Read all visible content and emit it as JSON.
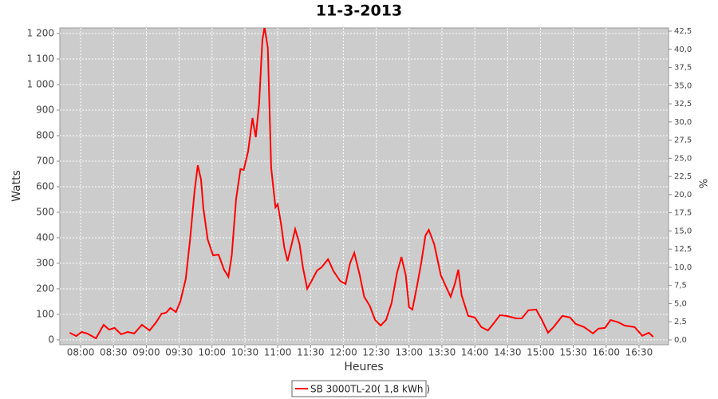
{
  "chart_data": {
    "type": "line",
    "title": "11-3-2013",
    "x_label": "Heures",
    "y_label": "Watts",
    "y2_label": "%",
    "x": [
      "07:50",
      "07:56",
      "08:01",
      "08:06",
      "08:14",
      "08:21",
      "08:26",
      "08:31",
      "08:37",
      "08:43",
      "08:49",
      "08:56",
      "09:03",
      "09:09",
      "09:14",
      "09:18",
      "09:22",
      "09:27",
      "09:31",
      "09:36",
      "09:40",
      "09:44",
      "09:47",
      "09:50",
      "09:52",
      "09:56",
      "10:01",
      "10:06",
      "10:11",
      "10:15",
      "10:18",
      "10:22",
      "10:26",
      "10:29",
      "10:33",
      "10:37",
      "10:40",
      "10:43",
      "10:46",
      "10:48",
      "10:51",
      "10:54",
      "10:58",
      "11:00",
      "11:03",
      "11:06",
      "11:09",
      "11:13",
      "11:16",
      "11:20",
      "11:23",
      "11:27",
      "11:31",
      "11:36",
      "11:40",
      "11:46",
      "11:51",
      "11:57",
      "12:02",
      "12:06",
      "12:10",
      "12:15",
      "12:19",
      "12:24",
      "12:29",
      "12:34",
      "12:39",
      "12:44",
      "12:49",
      "12:53",
      "12:57",
      "13:00",
      "13:03",
      "13:07",
      "13:11",
      "13:15",
      "13:18",
      "13:23",
      "13:29",
      "13:34",
      "13:38",
      "13:42",
      "13:45",
      "13:48",
      "13:54",
      "14:00",
      "14:06",
      "14:12",
      "14:17",
      "14:23",
      "14:29",
      "14:38",
      "14:43",
      "14:49",
      "14:56",
      "15:01",
      "15:07",
      "15:12",
      "15:20",
      "15:27",
      "15:32",
      "15:40",
      "15:48",
      "15:53",
      "15:59",
      "16:04",
      "16:11",
      "16:17",
      "16:26",
      "16:33",
      "16:39",
      "16:43"
    ],
    "series": [
      {
        "name": "SB 3000TL-20( 1,8 kWh )",
        "color": "#ff0000",
        "values": [
          28,
          15,
          31,
          25,
          6,
          59,
          40,
          47,
          22,
          31,
          25,
          59,
          37,
          69,
          103,
          106,
          125,
          109,
          150,
          238,
          394,
          581,
          684,
          628,
          519,
          394,
          331,
          334,
          275,
          247,
          331,
          550,
          669,
          666,
          738,
          869,
          794,
          925,
          1175,
          1225,
          1144,
          675,
          519,
          531,
          456,
          363,
          309,
          378,
          434,
          375,
          284,
          200,
          231,
          272,
          284,
          316,
          269,
          231,
          219,
          300,
          341,
          253,
          169,
          134,
          78,
          56,
          78,
          144,
          263,
          325,
          253,
          128,
          119,
          206,
          300,
          409,
          431,
          375,
          253,
          206,
          169,
          222,
          275,
          175,
          94,
          88,
          50,
          37,
          63,
          97,
          94,
          84,
          84,
          116,
          119,
          81,
          28,
          50,
          94,
          88,
          63,
          50,
          25,
          44,
          47,
          78,
          69,
          56,
          50,
          16,
          28,
          12
        ]
      }
    ],
    "xlim": [
      "07:41",
      "16:57"
    ],
    "xticks": [
      "08:00",
      "08:30",
      "09:00",
      "09:30",
      "10:00",
      "10:30",
      "11:00",
      "11:30",
      "12:00",
      "12:30",
      "13:00",
      "13:30",
      "14:00",
      "14:30",
      "15:00",
      "15:30",
      "16:00",
      "16:30"
    ],
    "ylim": [
      -19,
      1222
    ],
    "yticks": [
      0,
      100,
      200,
      300,
      400,
      500,
      600,
      700,
      800,
      900,
      {
        "value": 1000,
        "label": "1 000"
      },
      {
        "value": 1100,
        "label": "1 100"
      },
      {
        "value": 1200,
        "label": "1 200"
      }
    ],
    "y2lim": [
      -0.66,
      42.94
    ],
    "y2ticks": [
      {
        "value": 0,
        "label": "0,0"
      },
      {
        "value": 2.5,
        "label": "2,5"
      },
      {
        "value": 5,
        "label": "5,0"
      },
      {
        "value": 7.5,
        "label": "7,5"
      },
      {
        "value": 10,
        "label": "10,0"
      },
      {
        "value": 12.5,
        "label": "12,5"
      },
      {
        "value": 15,
        "label": "15,0"
      },
      {
        "value": 17.5,
        "label": "17,5"
      },
      {
        "value": 20,
        "label": "20,0"
      },
      {
        "value": 22.5,
        "label": "22,5"
      },
      {
        "value": 25,
        "label": "25,0"
      },
      {
        "value": 27.5,
        "label": "27,5"
      },
      {
        "value": 30,
        "label": "30,0"
      },
      {
        "value": 32.5,
        "label": "32,5"
      },
      {
        "value": 35,
        "label": "35,0"
      },
      {
        "value": 37.5,
        "label": "37,5"
      },
      {
        "value": 40,
        "label": "40,0"
      },
      {
        "value": 42.5,
        "label": "42,5"
      }
    ],
    "grid": true
  }
}
